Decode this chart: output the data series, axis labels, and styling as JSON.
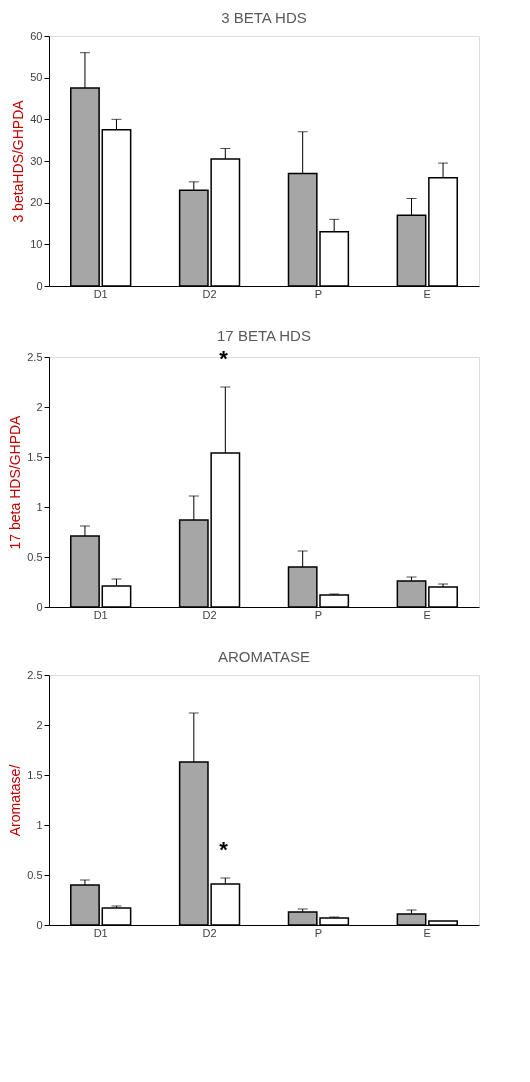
{
  "chart_data": [
    {
      "type": "bar",
      "title": "3 BETA HDS",
      "ylabel": "3 betaHDS/GHPDA",
      "categories": [
        "D1",
        "D2",
        "P",
        "E"
      ],
      "ylim": [
        0,
        60
      ],
      "yticks": [
        0,
        10,
        20,
        30,
        40,
        50,
        60
      ],
      "grid": false,
      "legend": false,
      "series": [
        {
          "color": "#a6a6a6",
          "values": [
            47.5,
            23,
            27,
            17
          ],
          "errors": [
            [
              47.5,
              56
            ],
            [
              23,
              25
            ],
            [
              27,
              37
            ],
            [
              17,
              21
            ]
          ]
        },
        {
          "color": "#ffffff",
          "values": [
            37.5,
            30.5,
            13,
            26
          ],
          "errors": [
            [
              37.5,
              40
            ],
            [
              30.5,
              33
            ],
            [
              13,
              16
            ],
            [
              26,
              29.5
            ]
          ]
        }
      ]
    },
    {
      "type": "bar",
      "title": "17 BETA HDS",
      "ylabel": "17 beta HDS/GHPDA",
      "categories": [
        "D1",
        "D2",
        "P",
        "E"
      ],
      "ylim": [
        0,
        2.5
      ],
      "yticks": [
        0,
        0.5,
        1,
        1.5,
        2,
        2.5
      ],
      "grid": false,
      "legend": false,
      "annotations": [
        "*"
      ],
      "series": [
        {
          "color": "#a6a6a6",
          "values": [
            0.71,
            0.87,
            0.4,
            0.26
          ],
          "errors": [
            [
              0.71,
              0.81
            ],
            [
              0.87,
              1.11
            ],
            [
              0.4,
              0.56
            ],
            [
              0.26,
              0.3
            ]
          ]
        },
        {
          "color": "#ffffff",
          "values": [
            0.21,
            1.54,
            0.12,
            0.2
          ],
          "errors": [
            [
              0.21,
              0.28
            ],
            [
              1.54,
              2.2
            ],
            [
              0.12,
              0.13
            ],
            [
              0.2,
              0.23
            ]
          ]
        }
      ]
    },
    {
      "type": "bar",
      "title": "AROMATASE",
      "ylabel": "Aromatase/",
      "categories": [
        "D1",
        "D2",
        "P",
        "E"
      ],
      "ylim": [
        0,
        2.5
      ],
      "yticks": [
        0,
        0.5,
        1,
        1.5,
        2,
        2.5
      ],
      "grid": false,
      "legend": false,
      "annotations": [
        "*"
      ],
      "series": [
        {
          "color": "#a6a6a6",
          "values": [
            0.4,
            1.63,
            0.13,
            0.11
          ],
          "errors": [
            [
              0.4,
              0.45
            ],
            [
              1.63,
              2.12
            ],
            [
              0.13,
              0.16
            ],
            [
              0.11,
              0.15
            ]
          ]
        },
        {
          "color": "#ffffff",
          "values": [
            0.17,
            0.41,
            0.07,
            0.04
          ],
          "errors": [
            [
              0.17,
              0.19
            ],
            [
              0.41,
              0.47
            ],
            [
              0.07,
              0.08
            ],
            null
          ]
        }
      ]
    }
  ]
}
